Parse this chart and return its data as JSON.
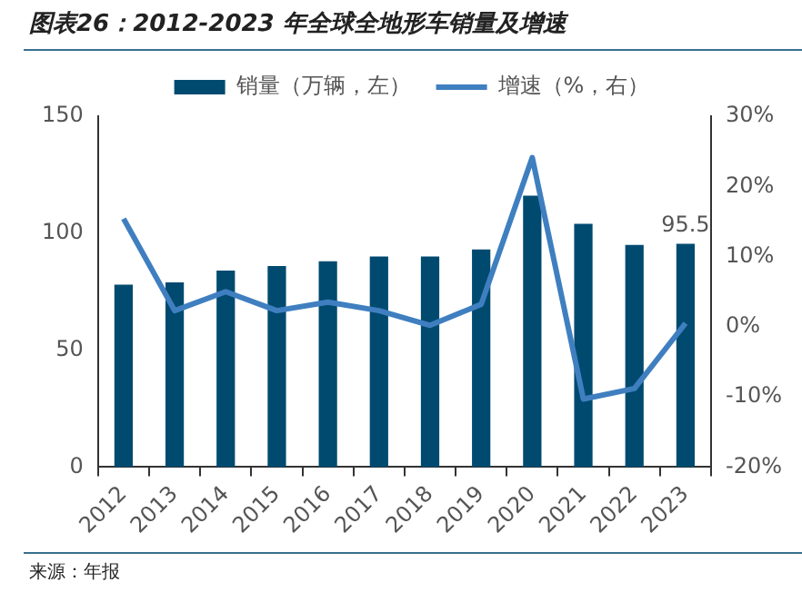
{
  "chart_data": {
    "type": "bar",
    "title": "图表26：2012-2023 年全球全地形车销量及增速",
    "categories": [
      "2012",
      "2013",
      "2014",
      "2015",
      "2016",
      "2017",
      "2018",
      "2019",
      "2020",
      "2021",
      "2022",
      "2023"
    ],
    "series": [
      {
        "name": "销量（万辆，左）",
        "color": "#004a70",
        "values": [
          78,
          79,
          84,
          86,
          88,
          90,
          90,
          93,
          116,
          104,
          95,
          95.5
        ],
        "value_labels": [
          null,
          null,
          null,
          null,
          null,
          null,
          null,
          null,
          null,
          null,
          null,
          "95.5"
        ]
      },
      {
        "name": "增速（%，右）",
        "type": "line",
        "axis": "y2",
        "color": "#3f7fc0",
        "values": [
          15.4,
          2.3,
          5.0,
          2.3,
          3.5,
          2.3,
          0.2,
          3.2,
          24.1,
          -10.3,
          -8.8,
          0.5
        ]
      }
    ],
    "ylim": [
      0,
      150
    ],
    "yticks": [
      0,
      50,
      100,
      150
    ],
    "y2lim": [
      -20,
      30
    ],
    "y2ticks": [
      {
        "value": -20,
        "label": "-20%"
      },
      {
        "value": -10,
        "label": "-10%"
      },
      {
        "value": 0,
        "label": "0%"
      },
      {
        "value": 10,
        "label": "10%"
      },
      {
        "value": 20,
        "label": "20%"
      },
      {
        "value": 30,
        "label": "30%"
      }
    ],
    "grid": false,
    "legend": "top",
    "marker": "none",
    "annotations": [
      "来源：年报"
    ]
  }
}
